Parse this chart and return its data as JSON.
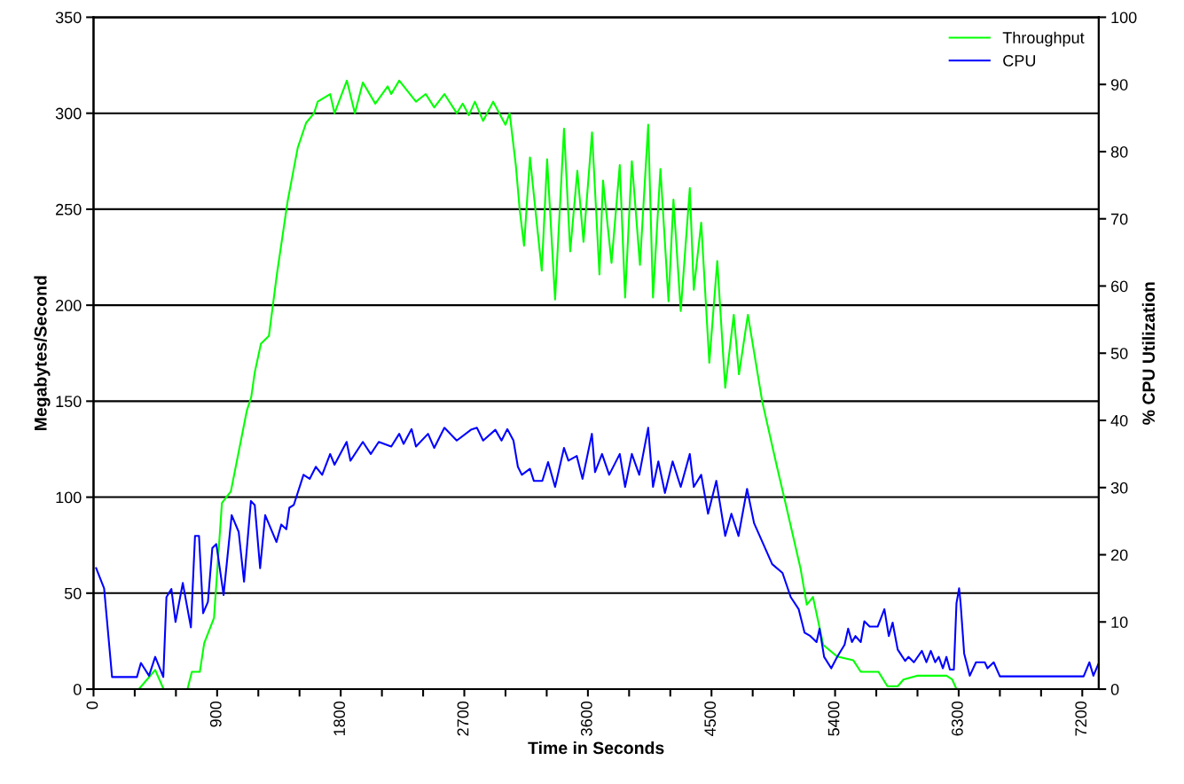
{
  "chart_data": {
    "type": "line",
    "xlabel": "Time in Seconds",
    "ylabel": "Megabytes/Second",
    "y2label": "% CPU Utilization",
    "xlim": [
      0,
      7320
    ],
    "ylim": [
      0,
      350
    ],
    "y2lim": [
      0,
      100
    ],
    "xticks": [
      0,
      {
        "value": 300,
        "label": null
      },
      {
        "value": 600,
        "label": null
      },
      900,
      {
        "value": 1200,
        "label": null
      },
      {
        "value": 1500,
        "label": null
      },
      1800,
      {
        "value": 2100,
        "label": null
      },
      {
        "value": 2400,
        "label": null
      },
      2700,
      {
        "value": 3000,
        "label": null
      },
      {
        "value": 3300,
        "label": null
      },
      3600,
      {
        "value": 3900,
        "label": null
      },
      {
        "value": 4200,
        "label": null
      },
      4500,
      {
        "value": 4800,
        "label": null
      },
      {
        "value": 5100,
        "label": null
      },
      5400,
      {
        "value": 5700,
        "label": null
      },
      {
        "value": 6000,
        "label": null
      },
      6300,
      {
        "value": 6600,
        "label": null
      },
      {
        "value": 6900,
        "label": null
      },
      7200
    ],
    "yticks": [
      0,
      50,
      100,
      150,
      200,
      250,
      300,
      350
    ],
    "y2ticks": [
      0,
      10,
      20,
      30,
      40,
      50,
      60,
      70,
      80,
      90,
      100
    ],
    "grid": "y",
    "legend": "top right",
    "marker": "none",
    "line_style": "solid",
    "series": [
      {
        "name": "Throughput",
        "color": "#00ff00",
        "x": [
          330,
          449,
          510,
          684,
          716,
          774,
          806,
          877,
          935,
          1000,
          1116,
          1148,
          1174,
          1219,
          1277,
          1335,
          1413,
          1487,
          1548,
          1606,
          1632,
          1723,
          1755,
          1845,
          1903,
          1961,
          2052,
          2142,
          2168,
          2226,
          2348,
          2419,
          2481,
          2555,
          2645,
          2688,
          2733,
          2777,
          2837,
          2910,
          3000,
          3030,
          3075,
          3103,
          3135,
          3178,
          3264,
          3303,
          3361,
          3426,
          3471,
          3523,
          3568,
          3630,
          3684,
          3710,
          3772,
          3832,
          3871,
          3920,
          3979,
          4039,
          4074,
          4128,
          4187,
          4223,
          4276,
          4342,
          4371,
          4425,
          4484,
          4542,
          4600,
          4662,
          4700,
          4765,
          4869,
          4973,
          5032,
          5148,
          5194,
          5239,
          5314,
          5415,
          5533,
          5587,
          5716,
          5781,
          5856,
          5898,
          5997,
          6211,
          6253,
          6284
        ],
        "values": [
          0,
          10,
          0,
          0,
          9,
          9,
          24,
          37,
          97,
          103,
          145,
          152,
          165,
          180,
          184,
          216,
          254,
          282,
          295,
          300,
          306,
          310,
          300,
          317,
          300,
          316,
          305,
          314,
          310,
          317,
          306,
          310,
          303,
          310,
          300,
          305,
          299,
          306,
          296,
          306,
          294,
          300,
          273,
          250,
          231,
          277,
          218,
          276,
          203,
          292,
          228,
          270,
          233,
          290,
          216,
          265,
          222,
          273,
          204,
          275,
          221,
          294,
          204,
          271,
          202,
          255,
          197,
          261,
          208,
          243,
          170,
          223,
          157,
          195,
          164,
          195,
          150,
          117,
          99,
          63,
          44,
          48,
          23,
          17,
          15,
          9,
          9,
          1.5,
          1.5,
          5,
          7,
          7,
          5,
          0
        ]
      },
      {
        "name": "CPU",
        "color": "#0000ff",
        "axis": "y2",
        "x": [
          19,
          77,
          135,
          316,
          345,
          404,
          449,
          508,
          531,
          567,
          597,
          650,
          709,
          739,
          768,
          798,
          833,
          865,
          894,
          947,
          1006,
          1057,
          1096,
          1146,
          1174,
          1213,
          1250,
          1332,
          1367,
          1404,
          1426,
          1458,
          1529,
          1574,
          1619,
          1665,
          1723,
          1755,
          1843,
          1871,
          1961,
          2019,
          2077,
          2168,
          2226,
          2258,
          2316,
          2348,
          2436,
          2481,
          2555,
          2645,
          2748,
          2792,
          2837,
          2926,
          2971,
          3013,
          3058,
          3090,
          3119,
          3178,
          3206,
          3268,
          3310,
          3361,
          3426,
          3458,
          3519,
          3561,
          3629,
          3652,
          3703,
          3755,
          3832,
          3871,
          3920,
          3974,
          4039,
          4074,
          4113,
          4161,
          4217,
          4276,
          4342,
          4371,
          4425,
          4475,
          4535,
          4600,
          4645,
          4697,
          4759,
          4810,
          4942,
          5017,
          5077,
          5135,
          5178,
          5220,
          5265,
          5287,
          5320,
          5372,
          5415,
          5469,
          5495,
          5523,
          5548,
          5587,
          5613,
          5652,
          5710,
          5759,
          5791,
          5819,
          5856,
          5910,
          5935,
          5974,
          6032,
          6065,
          6097,
          6129,
          6155,
          6185,
          6211,
          6236,
          6265,
          6284,
          6303,
          6314,
          6340,
          6381,
          6426,
          6490,
          6510,
          6555,
          6600,
          7210,
          7252,
          7281,
          7316
        ],
        "values": [
          18,
          15,
          1.8,
          1.8,
          3.9,
          2,
          4.8,
          1.8,
          13.7,
          14.9,
          10,
          15.8,
          9.2,
          22.8,
          22.8,
          11.3,
          13,
          21,
          21.6,
          14,
          25.9,
          23.4,
          16,
          28,
          27.4,
          18,
          25.9,
          21.9,
          24.5,
          23.8,
          27,
          27.4,
          31.9,
          31.3,
          33.1,
          31.9,
          35,
          33.4,
          36.8,
          34,
          36.8,
          35,
          36.8,
          36.1,
          38,
          36.5,
          38.7,
          36.1,
          38,
          35.9,
          38.9,
          37,
          38.6,
          38.9,
          37,
          38.6,
          37,
          38.7,
          37,
          33.1,
          31.9,
          32.8,
          31,
          31,
          33.8,
          30.1,
          35.9,
          34,
          34.7,
          31.3,
          38,
          32.3,
          35,
          31.9,
          35,
          30.1,
          35,
          31.9,
          38.9,
          30.1,
          33.9,
          29.2,
          33.9,
          30.1,
          35,
          30.1,
          31.9,
          26.1,
          31,
          22.8,
          26.1,
          22.8,
          29.8,
          24.7,
          18.6,
          17.3,
          13.7,
          11.9,
          8.4,
          7.9,
          7,
          9,
          4.8,
          3.1,
          4.8,
          6.6,
          9,
          7,
          7.9,
          7,
          10.1,
          9.3,
          9.3,
          11.9,
          7.9,
          9.9,
          5.9,
          4.2,
          4.8,
          4,
          5.7,
          4,
          5.7,
          4,
          4.8,
          3.1,
          4.8,
          2.9,
          2.9,
          12.8,
          15,
          12.8,
          5.3,
          2,
          4,
          4,
          3.1,
          4,
          1.9,
          1.9,
          4,
          2,
          3.7
        ]
      }
    ]
  }
}
